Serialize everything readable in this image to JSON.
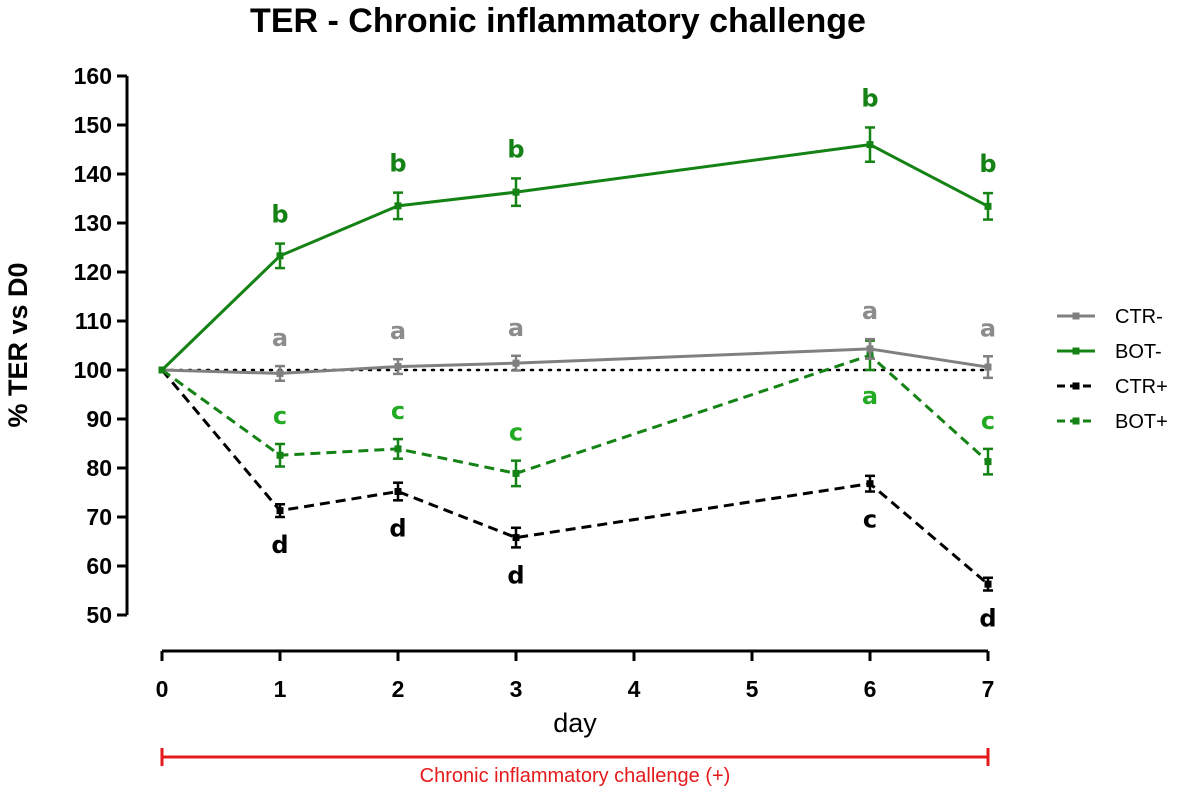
{
  "chart_data": {
    "type": "line",
    "title": "TER - Chronic inflammatory challenge",
    "xlabel": "day",
    "ylabel": "% TER vs D0",
    "x_ticks": [
      0,
      1,
      2,
      3,
      4,
      5,
      6,
      7
    ],
    "y_ticks": [
      50,
      60,
      70,
      80,
      90,
      100,
      110,
      120,
      130,
      140,
      150,
      160
    ],
    "xlim": [
      0,
      7
    ],
    "ylim": [
      50,
      160
    ],
    "reference_line": {
      "y": 100,
      "style": "dotted"
    },
    "series": [
      {
        "name": "CTR-",
        "color": "#808080",
        "style": "solid",
        "points": [
          {
            "x": 0,
            "y": 100,
            "err": 0,
            "label": ""
          },
          {
            "x": 1,
            "y": 99.3,
            "err": 1.5,
            "label": "a"
          },
          {
            "x": 2,
            "y": 100.7,
            "err": 1.5,
            "label": "a"
          },
          {
            "x": 3,
            "y": 101.4,
            "err": 1.5,
            "label": "a"
          },
          {
            "x": 6,
            "y": 104.3,
            "err": 2.0,
            "label": "a"
          },
          {
            "x": 7,
            "y": 100.6,
            "err": 2.2,
            "label": "a"
          }
        ]
      },
      {
        "name": "BOT-",
        "color": "#148214",
        "style": "solid",
        "points": [
          {
            "x": 0,
            "y": 100,
            "err": 0,
            "label": ""
          },
          {
            "x": 1,
            "y": 123.3,
            "err": 2.5,
            "label": "b"
          },
          {
            "x": 2,
            "y": 133.5,
            "err": 2.7,
            "label": "b"
          },
          {
            "x": 3,
            "y": 136.3,
            "err": 2.8,
            "label": "b"
          },
          {
            "x": 6,
            "y": 146.0,
            "err": 3.5,
            "label": "b"
          },
          {
            "x": 7,
            "y": 133.4,
            "err": 2.7,
            "label": "b"
          }
        ]
      },
      {
        "name": "CTR+",
        "color": "#000000",
        "style": "dashed",
        "points": [
          {
            "x": 0,
            "y": 100,
            "err": 0,
            "label": ""
          },
          {
            "x": 1,
            "y": 71.3,
            "err": 1.3,
            "label": "d"
          },
          {
            "x": 2,
            "y": 75.2,
            "err": 1.8,
            "label": "d"
          },
          {
            "x": 3,
            "y": 65.8,
            "err": 2.0,
            "label": "d"
          },
          {
            "x": 6,
            "y": 76.8,
            "err": 1.6,
            "label": "c"
          },
          {
            "x": 7,
            "y": 56.3,
            "err": 1.3,
            "label": "d"
          }
        ]
      },
      {
        "name": "BOT+",
        "color": "#148214",
        "style": "dashed",
        "points": [
          {
            "x": 0,
            "y": 100,
            "err": 0,
            "label": ""
          },
          {
            "x": 1,
            "y": 82.6,
            "err": 2.3,
            "label": "c"
          },
          {
            "x": 2,
            "y": 83.9,
            "err": 2.0,
            "label": "c"
          },
          {
            "x": 3,
            "y": 78.9,
            "err": 2.6,
            "label": "c"
          },
          {
            "x": 6,
            "y": 103.0,
            "err": 3.0,
            "label": "a"
          },
          {
            "x": 7,
            "y": 81.3,
            "err": 2.6,
            "label": "c"
          }
        ]
      }
    ],
    "legend": [
      "CTR-",
      "BOT-",
      "CTR+",
      "BOT+"
    ],
    "legend_position": "right",
    "challenge_bar": {
      "label": "Chronic inflammatory challenge (+)",
      "from": 0,
      "to": 7,
      "color": "#e41a1c"
    }
  }
}
